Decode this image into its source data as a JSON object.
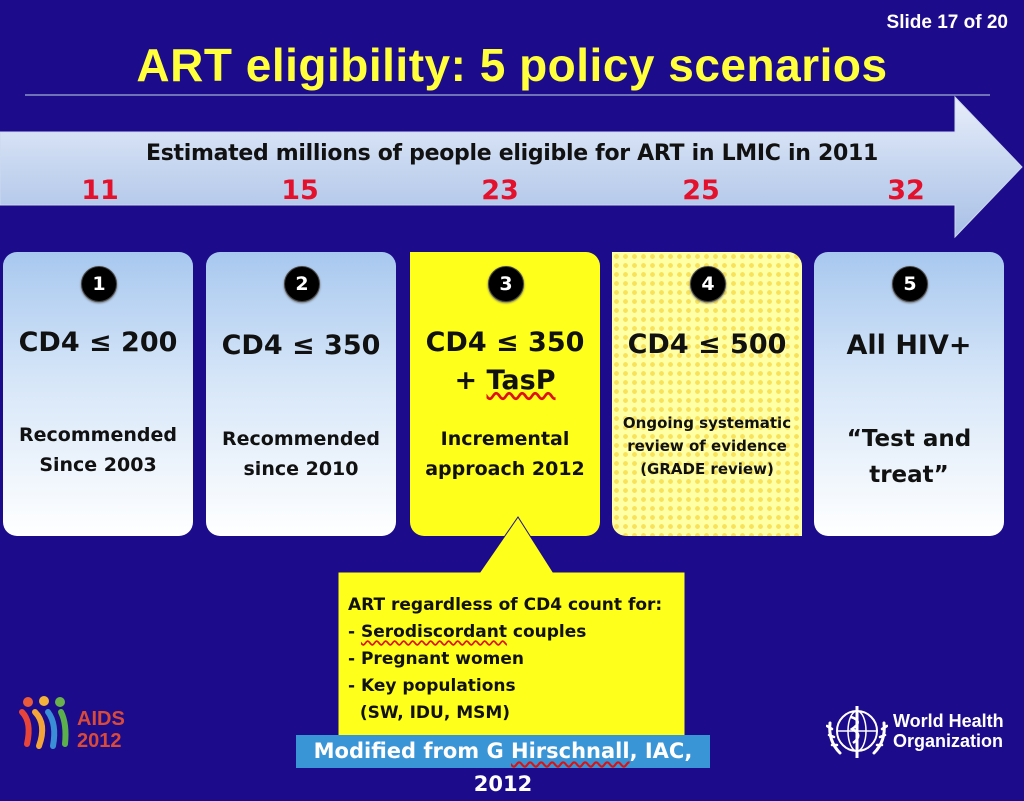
{
  "slide_counter": "Slide 17 of 20",
  "title": "ART eligibility: 5 policy scenarios",
  "arrow": {
    "label": "Estimated millions of people eligible for ART in LMIC in 2011",
    "values": [
      "11",
      "15",
      "23",
      "25",
      "32"
    ]
  },
  "cards": [
    {
      "number": "1",
      "heading": "CD4 ≤ 200",
      "heading2": "",
      "sub": [
        "Recommended",
        "Since 2003"
      ]
    },
    {
      "number": "2",
      "heading": "CD4 ≤ 350",
      "heading2": "",
      "sub": [
        "Recommended",
        "since 2010"
      ]
    },
    {
      "number": "3",
      "heading": "CD4 ≤ 350",
      "heading2_prefix": "+ ",
      "heading2_word": "TasP",
      "sub": [
        "Incremental",
        "approach 2012"
      ]
    },
    {
      "number": "4",
      "heading": "CD4 ≤ 500",
      "heading2": "",
      "sub": [
        "Ongoing systematic",
        "review of evidence",
        "(GRADE review)"
      ]
    },
    {
      "number": "5",
      "heading": "All HIV+",
      "heading2": "",
      "sub": [
        "“Test and",
        "treat”"
      ]
    }
  ],
  "callout": {
    "heading": "ART regardless of CD4 count for:",
    "item1_prefix": "- ",
    "item1_word": "Serodiscordant",
    "item1_suffix": " couples",
    "item2": "- Pregnant women",
    "item3": "- Key populations",
    "item4": "  (SW, IDU, MSM)"
  },
  "logos": {
    "aids_line1": "AIDS",
    "aids_line2": "2012",
    "who_line1": "World Health",
    "who_line2": "Organization"
  },
  "caption": {
    "prefix": "Modified from G ",
    "name": "Hirschnall",
    "suffix": ", IAC, 2012"
  },
  "colors": {
    "background": "#1c0b8a",
    "title": "#ffff3c",
    "numbers": "#e3112c",
    "highlight_card": "#ffff1c",
    "caption_bg": "#3a95d6"
  }
}
